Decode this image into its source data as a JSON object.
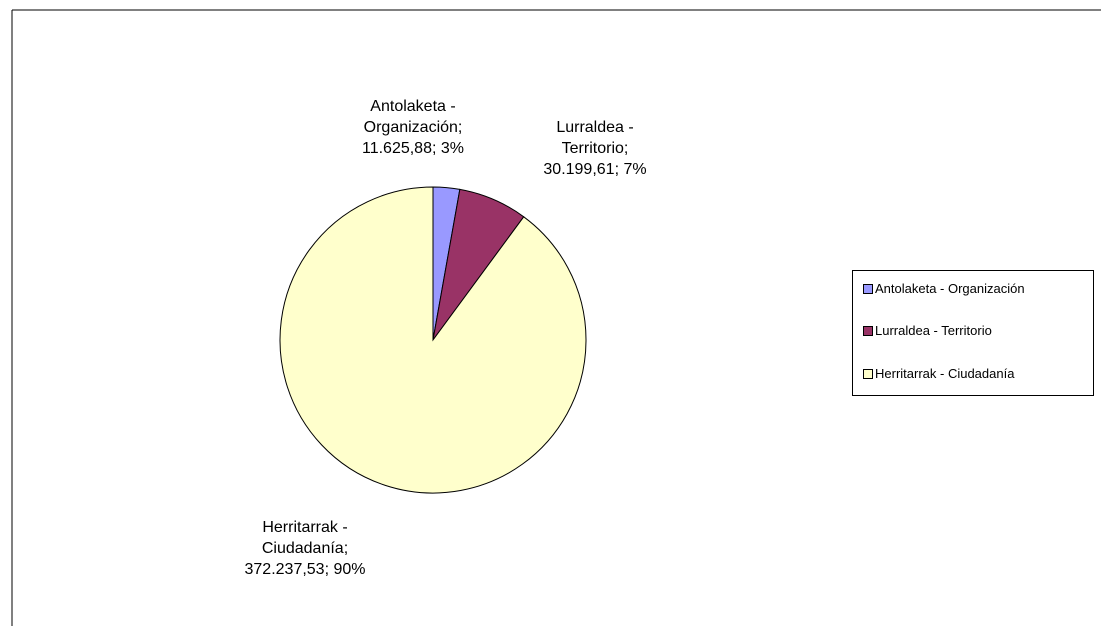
{
  "chart_data": {
    "type": "pie",
    "title": "",
    "slices": [
      {
        "name": "Antolaketa - Organización",
        "value": 11625.88,
        "percent": 3,
        "label_lines": [
          "Antolaketa  -",
          "Organización;",
          "11.625,88;  3%"
        ],
        "color": "#9999FF"
      },
      {
        "name": "Lurraldea - Territorio",
        "value": 30199.61,
        "percent": 7,
        "label_lines": [
          "Lurraldea  -",
          "Territorio;",
          "30.199,61;  7%"
        ],
        "color": "#993366"
      },
      {
        "name": "Herritarrak - Ciudadanía",
        "value": 372237.53,
        "percent": 90,
        "label_lines": [
          "Herritarrak  -",
          "Ciudadanía;",
          "372.237,53;  90%"
        ],
        "color": "#FFFFCC"
      }
    ],
    "legend": {
      "placement": "right",
      "entries": [
        "Antolaketa - Organización",
        "Lurraldea - Territorio",
        "Herritarrak - Ciudadanía"
      ]
    }
  }
}
